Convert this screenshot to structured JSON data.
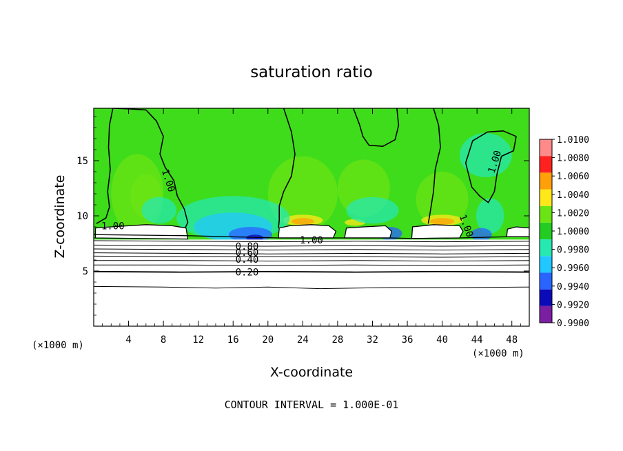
{
  "chart_data": {
    "type": "heatmap",
    "title": "saturation ratio",
    "xlabel": "X-coordinate",
    "ylabel": "Z-coordinate",
    "x_unit": "(×1000 m)",
    "y_unit": "(×1000 m)",
    "xlim": [
      0,
      50
    ],
    "ylim": [
      0,
      19.75
    ],
    "x_ticks": [
      4,
      8,
      12,
      16,
      20,
      24,
      28,
      32,
      36,
      40,
      44,
      48
    ],
    "y_ticks": [
      5,
      10,
      15
    ],
    "footer": "CONTOUR INTERVAL = 1.000E-01",
    "colorbar": {
      "levels": [
        "0.9900",
        "0.9920",
        "0.9940",
        "0.9960",
        "0.9980",
        "1.0000",
        "1.0020",
        "1.0040",
        "1.0060",
        "1.0080",
        "1.0100"
      ],
      "colors": [
        "#7a1fa2",
        "#0a0ab8",
        "#2a64ff",
        "#21c7ff",
        "#27e8b0",
        "#22cc22",
        "#6be414",
        "#ffe81a",
        "#ffa00a",
        "#ff2020",
        "#ff8a8a"
      ]
    },
    "background_color": "#3fdc1b",
    "contour_labels": [
      {
        "text": "1.00",
        "x": 8.6,
        "y": 13.2,
        "rot": 72
      },
      {
        "text": "1.00",
        "x": 2.2,
        "y": 9.1,
        "rot": 0
      },
      {
        "text": "1.00",
        "x": 46.0,
        "y": 14.9,
        "rot": -72
      },
      {
        "text": "1.00",
        "x": 25.0,
        "y": 7.8,
        "rot": 0
      },
      {
        "text": "1.00",
        "x": 42.8,
        "y": 9.1,
        "rot": 70
      },
      {
        "text": "0.80",
        "x": 17.6,
        "y": 7.25,
        "rot": 0
      },
      {
        "text": "0.60",
        "x": 17.6,
        "y": 6.7,
        "rot": 0
      },
      {
        "text": "0.40",
        "x": 17.6,
        "y": 6.05,
        "rot": 0
      },
      {
        "text": "0.20",
        "x": 17.6,
        "y": 4.9,
        "rot": 0
      }
    ],
    "contour_levels": [
      0.2,
      0.4,
      0.6,
      0.8,
      1.0
    ]
  }
}
